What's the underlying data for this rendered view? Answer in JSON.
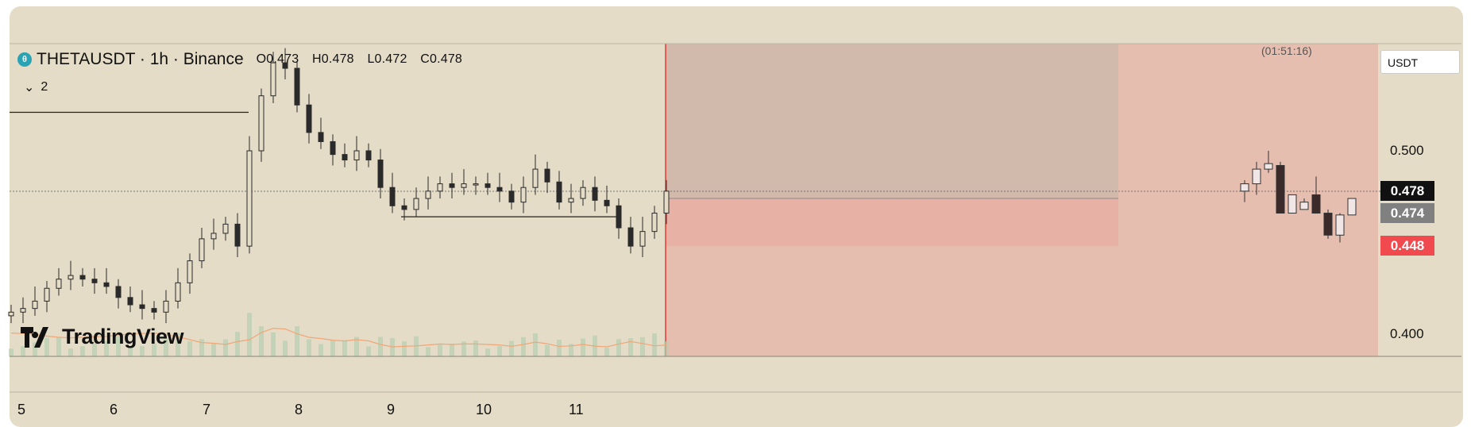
{
  "header": {
    "symbol_line": "THETAUSDT · 1h · Binance",
    "open": "O0.473",
    "high": "H0.478",
    "low": "L0.472",
    "close": "C0.478",
    "coin_icon": "theta-coin-icon"
  },
  "indicator_toggle": {
    "icon": "chevron-down-icon",
    "count": "2"
  },
  "countdown": "(01:51:16)",
  "currency_selector": "USDT",
  "price_axis": {
    "labels": [
      "0.500",
      "0.400"
    ],
    "current_price": "0.478",
    "tag_gray": "0.474",
    "tag_red": "0.448"
  },
  "time_axis": [
    "5",
    "6",
    "7",
    "8",
    "9",
    "10",
    "11"
  ],
  "watermark": "TradingView",
  "colors": {
    "background": "#e4dcc6",
    "candle": "#2a2a2a",
    "volume": "#b7cdb0",
    "volume_ma": "#f0a678",
    "short_zone": "#e8a69c",
    "price_tag_dark": "#111111",
    "price_tag_gray": "#808080",
    "price_tag_red": "#f04a4f",
    "vertical_line": "#e53935"
  },
  "chart_data": {
    "type": "candlestick",
    "symbol": "THETAUSDT",
    "interval": "1h",
    "exchange": "Binance",
    "x_labels": [
      "5",
      "6",
      "7",
      "8",
      "9",
      "10",
      "11"
    ],
    "y_ticks": [
      0.5,
      0.4
    ],
    "close_series": [
      0.412,
      0.414,
      0.418,
      0.425,
      0.43,
      0.432,
      0.43,
      0.428,
      0.426,
      0.42,
      0.416,
      0.414,
      0.412,
      0.418,
      0.428,
      0.44,
      0.452,
      0.455,
      0.46,
      0.448,
      0.5,
      0.53,
      0.548,
      0.545,
      0.525,
      0.51,
      0.505,
      0.498,
      0.495,
      0.5,
      0.495,
      0.48,
      0.47,
      0.468,
      0.474,
      0.478,
      0.482,
      0.48,
      0.482,
      0.482,
      0.48,
      0.478,
      0.472,
      0.48,
      0.49,
      0.483,
      0.472,
      0.474,
      0.48,
      0.473,
      0.47,
      0.458,
      0.448,
      0.456,
      0.466,
      0.478
    ],
    "session_high": 0.55,
    "session_low": 0.413,
    "horizontal_levels": [
      0.521,
      0.464
    ],
    "short_position": {
      "entry": 0.474,
      "target": 0.448
    },
    "mini_candles": [
      {
        "open": 0.478,
        "high": 0.484,
        "low": 0.472,
        "close": 0.482,
        "color": "light"
      },
      {
        "open": 0.482,
        "high": 0.494,
        "low": 0.476,
        "close": 0.49,
        "color": "light"
      },
      {
        "open": 0.49,
        "high": 0.5,
        "low": 0.488,
        "close": 0.493,
        "color": "light"
      },
      {
        "open": 0.492,
        "high": 0.494,
        "low": 0.466,
        "close": 0.466,
        "color": "dark"
      },
      {
        "open": 0.466,
        "high": 0.476,
        "low": 0.466,
        "close": 0.476,
        "color": "light"
      },
      {
        "open": 0.472,
        "high": 0.474,
        "low": 0.468,
        "close": 0.468,
        "color": "light"
      },
      {
        "open": 0.476,
        "high": 0.486,
        "low": 0.466,
        "close": 0.466,
        "color": "dark"
      },
      {
        "open": 0.466,
        "high": 0.468,
        "low": 0.452,
        "close": 0.454,
        "color": "dark"
      },
      {
        "open": 0.454,
        "high": 0.466,
        "low": 0.45,
        "close": 0.465,
        "color": "light"
      },
      {
        "open": 0.465,
        "high": 0.474,
        "low": 0.465,
        "close": 0.474,
        "color": "light"
      }
    ]
  }
}
